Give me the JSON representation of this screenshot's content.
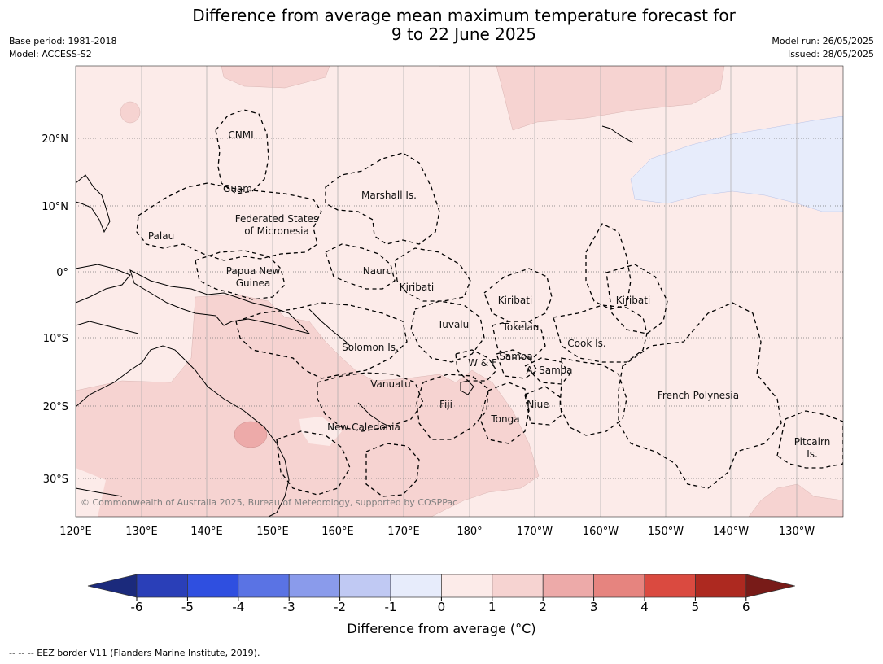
{
  "header": {
    "title_line1": "Difference from average mean maximum temperature forecast for",
    "title_line2": "9 to 22 June 2025",
    "base_period": "Base period: 1981-2018",
    "model": "Model: ACCESS-S2",
    "model_run": "Model run: 26/05/2025",
    "issued": "Issued: 28/05/2025"
  },
  "map": {
    "lon_labels": [
      "120°E",
      "130°E",
      "140°E",
      "150°E",
      "160°E",
      "170°E",
      "180°",
      "170°W",
      "160°W",
      "150°W",
      "140°W",
      "130°W"
    ],
    "lat_labels": [
      "20°N",
      "10°N",
      "0°",
      "10°S",
      "20°S",
      "30°S"
    ],
    "regions": {
      "cnmi": "CNMI",
      "guam": "Guam",
      "marshall": "Marshall Is.",
      "fsm_1": "Federated States",
      "fsm_2": "of Micronesia",
      "palau": "Palau",
      "png_1": "Papua New",
      "png_2": "Guinea",
      "nauru": "Nauru",
      "kiribati_w": "Kiribati",
      "kiribati_c": "Kiribati",
      "kiribati_e": "Kiribati",
      "tuvalu": "Tuvalu",
      "tokelau": "Tokelau",
      "cook": "Cook Is.",
      "solomon": "Solomon Is.",
      "samoa": "Samoa",
      "wf": "W & F",
      "asamoa": "A. Samoa",
      "vanuatu": "Vanuatu",
      "fiji": "Fiji",
      "niue": "Niue",
      "tonga": "Tonga",
      "frpoly": "French Polynesia",
      "newcal": "New Caledonia",
      "pitcairn_1": "Pitcairn",
      "pitcairn_2": "Is."
    },
    "copyright": "© Commonwealth of Australia 2025, Bureau of Meteorology, supported by COSPPac",
    "colors": {
      "anom_0_1": "#fcebe9",
      "anom_1_2": "#f6d3d1",
      "anom_2_3": "#edaaa9",
      "anom_m1_0": "#e7ecfb",
      "land_outline": "#000000"
    }
  },
  "colorbar": {
    "ticks": [
      "-6",
      "-5",
      "-4",
      "-3",
      "-2",
      "-1",
      "0",
      "1",
      "2",
      "3",
      "4",
      "5",
      "6"
    ],
    "colors": [
      "#1b2a7c",
      "#2a3fb8",
      "#2f4fe0",
      "#5a73e4",
      "#8a9beb",
      "#c0c9f3",
      "#e7ecfb",
      "#fcebe9",
      "#f6d3d1",
      "#edaaa9",
      "#e6847f",
      "#da4a40",
      "#ad2920",
      "#781b18"
    ],
    "label": "Difference from average (°C)"
  },
  "footer": {
    "legend": "-- -- -- EEZ border V11 (Flanders Marine Institute, 2019)."
  }
}
